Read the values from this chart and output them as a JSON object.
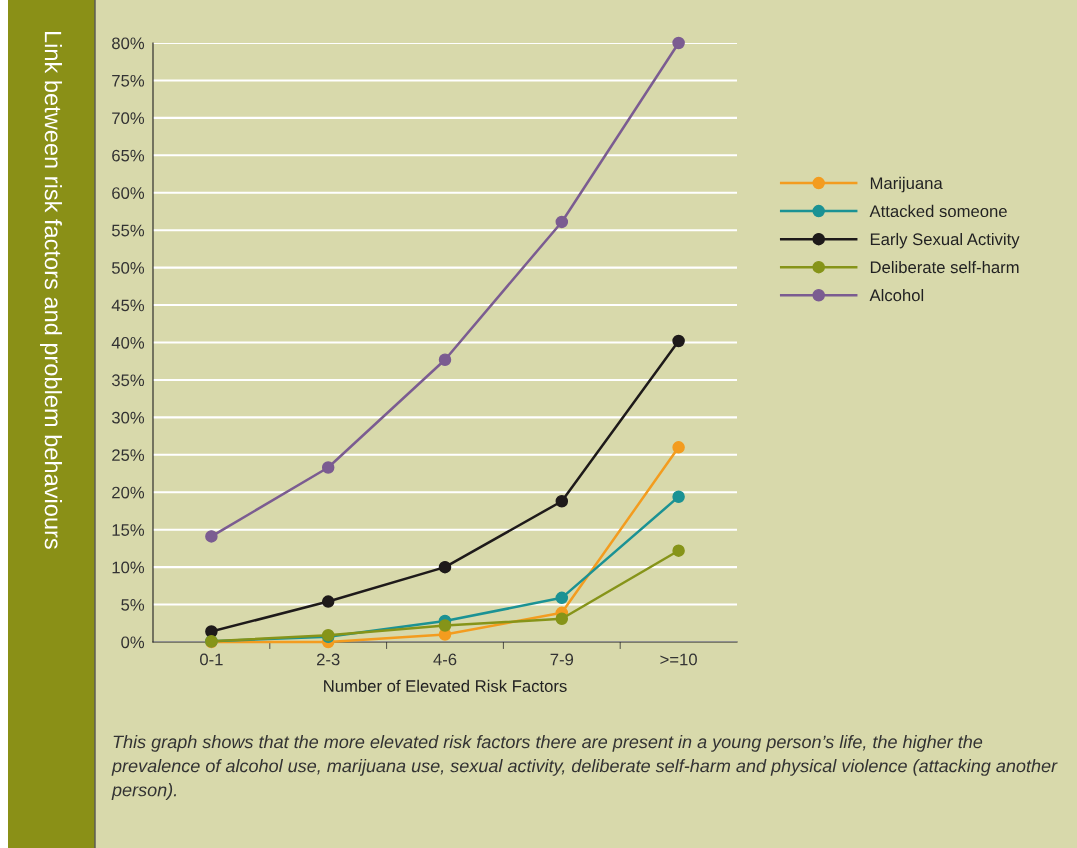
{
  "chart_data": {
    "type": "line",
    "title": "Link between risk factors and problem behaviours",
    "xlabel": "Number of Elevated Risk Factors",
    "categories": [
      "0-1",
      "2-3",
      "4-6",
      "7-9",
      ">=10"
    ],
    "series": [
      {
        "name": "Marijuana",
        "color": "#f39c1f",
        "values": [
          0,
          0,
          1.0,
          3.9,
          26.0
        ]
      },
      {
        "name": "Attacked someone",
        "color": "#1b9294",
        "values": [
          0.1,
          0.7,
          2.8,
          5.9,
          19.4
        ]
      },
      {
        "name": "Early Sexual Activity",
        "color": "#1e1a1a",
        "values": [
          1.4,
          5.4,
          10.0,
          18.8,
          40.2
        ]
      },
      {
        "name": "Deliberate self-harm",
        "color": "#869419",
        "values": [
          0.1,
          0.9,
          2.2,
          3.1,
          12.2
        ]
      },
      {
        "name": "Alcohol",
        "color": "#7b5c91",
        "values": [
          14.1,
          23.3,
          37.7,
          56.1,
          80
        ]
      }
    ],
    "ylim": [
      0,
      80
    ],
    "yticks": [
      {
        "value": 0,
        "label": "0%"
      },
      {
        "value": 5,
        "label": "5%"
      },
      {
        "value": 10,
        "label": "10%"
      },
      {
        "value": 15,
        "label": "15%"
      },
      {
        "value": 20,
        "label": "20%"
      },
      {
        "value": 25,
        "label": "25%"
      },
      {
        "value": 30,
        "label": "30%"
      },
      {
        "value": 35,
        "label": "35%"
      },
      {
        "value": 40,
        "label": "40%"
      },
      {
        "value": 45,
        "label": "45%"
      },
      {
        "value": 50,
        "label": "50%"
      },
      {
        "value": 55,
        "label": "55%"
      },
      {
        "value": 60,
        "label": "60%"
      },
      {
        "value": 65,
        "label": "65%"
      },
      {
        "value": 70,
        "label": "70%"
      },
      {
        "value": 75,
        "label": "75%"
      },
      {
        "value": 80,
        "label": "80%"
      }
    ],
    "grid": "y",
    "legend": "right",
    "marker": "circle",
    "line_style": "solid",
    "annotations": [
      "This graph shows that the more elevated risk factors there are present in a young person’s life, the higher the prevalence of alcohol use, marijuana use, sexual activity, deliberate self-harm and physical violence (attacking another person)."
    ]
  }
}
